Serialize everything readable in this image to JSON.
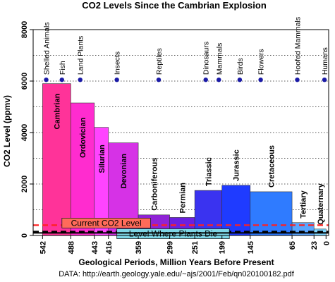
{
  "chart_data": {
    "type": "bar",
    "title": "CO2 Levels Since the Cambrian Explosion",
    "xlabel": "Geological Periods, Million Years Before Present",
    "ylabel": "CO2 Level (ppmv)",
    "xlim": [
      560,
      -5
    ],
    "ylim": [
      0,
      8000
    ],
    "y_ticks": [
      0,
      2000,
      4000,
      6000,
      8000
    ],
    "y_tick_labels": [
      "0",
      "2000",
      "4000",
      "6000",
      "8000"
    ],
    "x_ticks": [
      542,
      488,
      443,
      416,
      359,
      299,
      251,
      199,
      145,
      65,
      23,
      0
    ],
    "x_tick_labels": [
      "542",
      "488",
      "443",
      "416",
      "359",
      "299",
      "251",
      "199",
      "145",
      "65",
      "23",
      "0"
    ],
    "periods": [
      {
        "name": "Cambrian",
        "start": 542,
        "end": 488,
        "value": 5900,
        "color": "#ff3399",
        "label_color": "#000000"
      },
      {
        "name": "Ordovician",
        "start": 488,
        "end": 443,
        "value": 5150,
        "color": "#ff2ccf",
        "label_color": "#000000"
      },
      {
        "name": "Silurian",
        "start": 443,
        "end": 416,
        "value": 4200,
        "color": "#ff44ff",
        "label_color": "#000000"
      },
      {
        "name": "Devonian",
        "start": 416,
        "end": 359,
        "value": 3600,
        "color": "#d632e6",
        "label_color": "#000000"
      },
      {
        "name": "Carboniferous",
        "start": 359,
        "end": 299,
        "value": 800,
        "color": "#8f23d6",
        "label_color": "#000000"
      },
      {
        "name": "Permian",
        "start": 299,
        "end": 251,
        "value": 700,
        "color": "#6b1fe0",
        "label_color": "#000000"
      },
      {
        "name": "Triassic",
        "start": 251,
        "end": 199,
        "value": 1750,
        "color": "#3a33f0",
        "label_color": "#000000"
      },
      {
        "name": "Jurassic",
        "start": 199,
        "end": 145,
        "value": 1950,
        "color": "#1f3bff",
        "label_color": "#000000"
      },
      {
        "name": "Cretaceous",
        "start": 145,
        "end": 65,
        "value": 1700,
        "color": "#2f7bff",
        "label_color": "#000000"
      },
      {
        "name": "Tertiary",
        "start": 65,
        "end": 23,
        "value": 500,
        "color": "#5aa6ff",
        "label_color": "#000000"
      },
      {
        "name": "Quaternary",
        "start": 23,
        "end": 0,
        "value": 250,
        "color": "#7fd6ff",
        "label_color": "#000000"
      }
    ],
    "events": [
      {
        "name": "Shelled Animals",
        "x": 535
      },
      {
        "name": "Fish",
        "x": 505
      },
      {
        "name": "Land Plants",
        "x": 470
      },
      {
        "name": "Insects",
        "x": 400
      },
      {
        "name": "Reptiles",
        "x": 320
      },
      {
        "name": "Dinosaurs",
        "x": 230
      },
      {
        "name": "Mammals",
        "x": 205
      },
      {
        "name": "Birds",
        "x": 165
      },
      {
        "name": "Flowers",
        "x": 125
      },
      {
        "name": "Hoofed Mammals",
        "x": 55
      },
      {
        "name": "Humans",
        "x": 3
      }
    ],
    "event_marker_y": 6050,
    "event_marker_color": "#1a1aa6",
    "reference_lines": [
      {
        "name": "Current CO2 Level",
        "value": 400,
        "color": "#ff2020",
        "style": "dashed",
        "label_box_color": "#ff6b5a",
        "label_x": 505
      },
      {
        "name": "Level Where Plants Die",
        "value": 150,
        "color": "#000000",
        "style": "dashed",
        "label_box_color": "#7fd6e6",
        "label_x": 400
      },
      {
        "name": "",
        "value": 100,
        "color": "#000000",
        "style": "solid"
      }
    ],
    "grid": {
      "horizontal": true,
      "style": "dotted",
      "values": [
        1000,
        3000,
        5000,
        7000,
        2000,
        4000,
        6000
      ]
    },
    "source_note": "DATA: http://earth.geology.yale.edu/~ajs/2001/Feb/qn020100182.pdf"
  }
}
